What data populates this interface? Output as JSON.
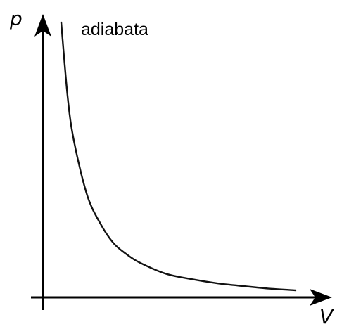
{
  "chart_data": {
    "type": "line",
    "title": "",
    "xlabel": "V",
    "ylabel": "p",
    "annotation": "adiabata",
    "grid": false,
    "legend": "none",
    "colors": {
      "curve": "#111111",
      "axes": "#000000"
    },
    "series": [
      {
        "values": [
          {
            "x": 1.0,
            "y": 1.0
          },
          {
            "x": 1.25,
            "y": 0.73
          },
          {
            "x": 1.5,
            "y": 0.57
          },
          {
            "x": 2.0,
            "y": 0.38
          },
          {
            "x": 2.5,
            "y": 0.28
          },
          {
            "x": 3.0,
            "y": 0.21
          },
          {
            "x": 3.5,
            "y": 0.17
          },
          {
            "x": 4.0,
            "y": 0.14
          },
          {
            "x": 5.0,
            "y": 0.1
          },
          {
            "x": 6.0,
            "y": 0.08
          },
          {
            "x": 7.0,
            "y": 0.065
          },
          {
            "x": 8.0,
            "y": 0.055
          },
          {
            "x": 9.0,
            "y": 0.046
          },
          {
            "x": 10.0,
            "y": 0.04
          }
        ]
      }
    ]
  }
}
